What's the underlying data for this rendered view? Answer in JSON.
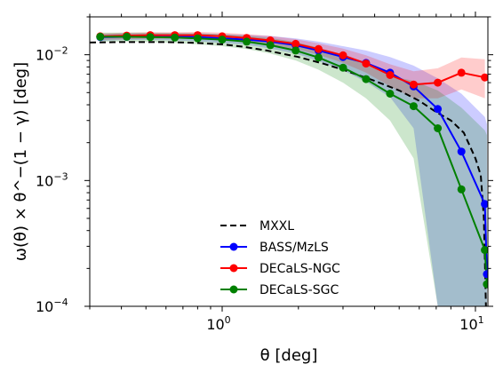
{
  "chart_data": {
    "type": "line",
    "xlabel": "θ [deg]",
    "ylabel": "ω(θ) × θ^−(1 − γ) [deg]",
    "xscale": "log",
    "yscale": "log",
    "xlim": [
      0.3,
      11.2
    ],
    "ylim": [
      0.0001,
      0.02
    ],
    "x_ticks": [
      {
        "value": 1,
        "base": "10",
        "exp": "0"
      },
      {
        "value": 10,
        "base": "10",
        "exp": "1"
      }
    ],
    "y_ticks": [
      {
        "value": 0.0001,
        "base": "10",
        "exp": "−4"
      },
      {
        "value": 0.001,
        "base": "10",
        "exp": "−3"
      },
      {
        "value": 0.01,
        "base": "10",
        "exp": "−2"
      }
    ],
    "legend_position": "lower-center",
    "series": [
      {
        "name": "MXXL",
        "color": "#000000",
        "style": "dashed",
        "marker": "none",
        "x": [
          0.3,
          0.4,
          0.5,
          0.6,
          0.7,
          0.8,
          1.0,
          1.2,
          1.5,
          2.0,
          2.5,
          3.0,
          4.0,
          5.0,
          6.0,
          7.0,
          8.0,
          9.0,
          10.0,
          10.5,
          10.8,
          11.0
        ],
        "y": [
          0.0125,
          0.0126,
          0.0126,
          0.0126,
          0.0125,
          0.0124,
          0.0121,
          0.0116,
          0.0108,
          0.0096,
          0.0085,
          0.0076,
          0.0062,
          0.0052,
          0.0043,
          0.0035,
          0.003,
          0.0024,
          0.0015,
          0.0011,
          0.0005,
          0.0001
        ]
      },
      {
        "name": "BASS/MzLS",
        "color": "#0000ff",
        "band_color": "#0000ff",
        "marker": "circle",
        "x": [
          0.33,
          0.42,
          0.52,
          0.65,
          0.8,
          1.0,
          1.25,
          1.55,
          1.95,
          2.4,
          3.0,
          3.7,
          4.6,
          5.7,
          7.1,
          8.8,
          10.9,
          11.1
        ],
        "y": [
          0.0138,
          0.0139,
          0.0139,
          0.0139,
          0.0138,
          0.0135,
          0.0132,
          0.0127,
          0.0119,
          0.0108,
          0.0096,
          0.0086,
          0.0072,
          0.0056,
          0.0037,
          0.0017,
          0.00065,
          0.00018
        ],
        "band_low": [
          0.0129,
          0.0131,
          0.0131,
          0.013,
          0.0128,
          0.0124,
          0.012,
          0.0112,
          0.0102,
          0.0089,
          0.0075,
          0.0061,
          0.0046,
          0.0026,
          0.0001,
          0.0001,
          0.0001,
          0.0001
        ],
        "band_high": [
          0.0146,
          0.0148,
          0.0148,
          0.0148,
          0.0148,
          0.0146,
          0.0144,
          0.0141,
          0.0135,
          0.0127,
          0.0117,
          0.0108,
          0.0096,
          0.0082,
          0.0065,
          0.0049,
          0.0032,
          0.0028
        ]
      },
      {
        "name": "DECaLS-NGC",
        "color": "#ff0000",
        "band_color": "#ff0000",
        "marker": "circle",
        "x": [
          0.33,
          0.42,
          0.52,
          0.65,
          0.8,
          1.0,
          1.25,
          1.55,
          1.95,
          2.4,
          3.0,
          3.7,
          4.6,
          5.7,
          7.1,
          8.8,
          10.9
        ],
        "y": [
          0.014,
          0.0142,
          0.0143,
          0.0143,
          0.0143,
          0.014,
          0.0136,
          0.013,
          0.0122,
          0.0111,
          0.0099,
          0.0085,
          0.0069,
          0.0058,
          0.006,
          0.0072,
          0.0066
        ],
        "band_low": [
          0.0131,
          0.0133,
          0.0134,
          0.0134,
          0.0133,
          0.013,
          0.0126,
          0.012,
          0.0111,
          0.01,
          0.0086,
          0.0072,
          0.0056,
          0.0045,
          0.0045,
          0.0053,
          0.0045
        ],
        "band_high": [
          0.0148,
          0.015,
          0.0151,
          0.0151,
          0.0152,
          0.015,
          0.0146,
          0.0141,
          0.0133,
          0.0123,
          0.0112,
          0.0099,
          0.0084,
          0.0074,
          0.0078,
          0.0095,
          0.0092
        ]
      },
      {
        "name": "DECaLS-SGC",
        "color": "#008000",
        "band_color": "#008000",
        "marker": "circle",
        "x": [
          0.33,
          0.42,
          0.52,
          0.65,
          0.8,
          1.0,
          1.25,
          1.55,
          1.95,
          2.4,
          3.0,
          3.7,
          4.6,
          5.7,
          7.1,
          8.8,
          10.9,
          11.1
        ],
        "y": [
          0.0139,
          0.0139,
          0.0138,
          0.0137,
          0.0135,
          0.0132,
          0.0127,
          0.0119,
          0.0108,
          0.0095,
          0.0079,
          0.0064,
          0.0049,
          0.0039,
          0.0026,
          0.00085,
          0.00028,
          0.00015
        ],
        "band_low": [
          0.0127,
          0.0127,
          0.0126,
          0.0124,
          0.0121,
          0.0117,
          0.0111,
          0.0102,
          0.009,
          0.0076,
          0.006,
          0.0045,
          0.003,
          0.0015,
          0.0001,
          0.0001,
          0.0001,
          0.0001
        ],
        "band_high": [
          0.015,
          0.015,
          0.015,
          0.0149,
          0.0148,
          0.0146,
          0.0142,
          0.0136,
          0.0126,
          0.0114,
          0.0098,
          0.0083,
          0.0068,
          0.0062,
          0.0052,
          0.0038,
          0.0025,
          0.0023
        ]
      }
    ]
  }
}
